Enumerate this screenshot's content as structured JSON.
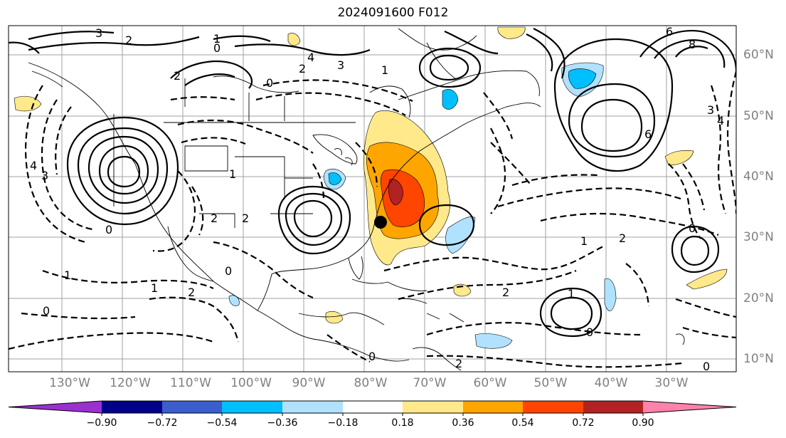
{
  "title": "2024091600 F012",
  "longitude_labels": [
    "130°W",
    "120°W",
    "110°W",
    "100°W",
    "90°W",
    "80°W",
    "70°W",
    "60°W",
    "50°W",
    "40°W",
    "30°W"
  ],
  "latitude_labels": [
    "60°N",
    "50°N",
    "40°N",
    "30°N",
    "20°N",
    "10°N"
  ],
  "colorbar": {
    "ticks": [
      "−0.90",
      "−0.72",
      "−0.54",
      "−0.36",
      "−0.18",
      "0.18",
      "0.36",
      "0.54",
      "0.72",
      "0.90"
    ],
    "colors": [
      "#9b30d0",
      "#00008b",
      "#3a5fcd",
      "#00bfff",
      "#b0e2ff",
      "#ffffff",
      "#ffe98a",
      "#ffa500",
      "#ff4500",
      "#b22222",
      "#ff82ab"
    ]
  },
  "contour_labels": [
    "3",
    "2",
    "1",
    "0",
    "4",
    "3",
    "2",
    "1",
    "0",
    "2",
    "6",
    "8",
    "6",
    "4",
    "3",
    "4",
    "3",
    "2",
    "1",
    "0",
    "1",
    "2",
    "2",
    "1",
    "0",
    "2",
    "2",
    "0",
    "1",
    "0",
    "2",
    "1",
    "0",
    "0",
    "0"
  ],
  "marker": {
    "name": "storm-position",
    "lon": -78.0,
    "lat": 33.0
  },
  "shading_colors": {
    "light_yellow": "#ffe98a",
    "orange": "#ffa500",
    "red_orange": "#ff4500",
    "dark_red": "#b22222",
    "light_blue": "#b0e2ff",
    "blue": "#00bfff"
  }
}
